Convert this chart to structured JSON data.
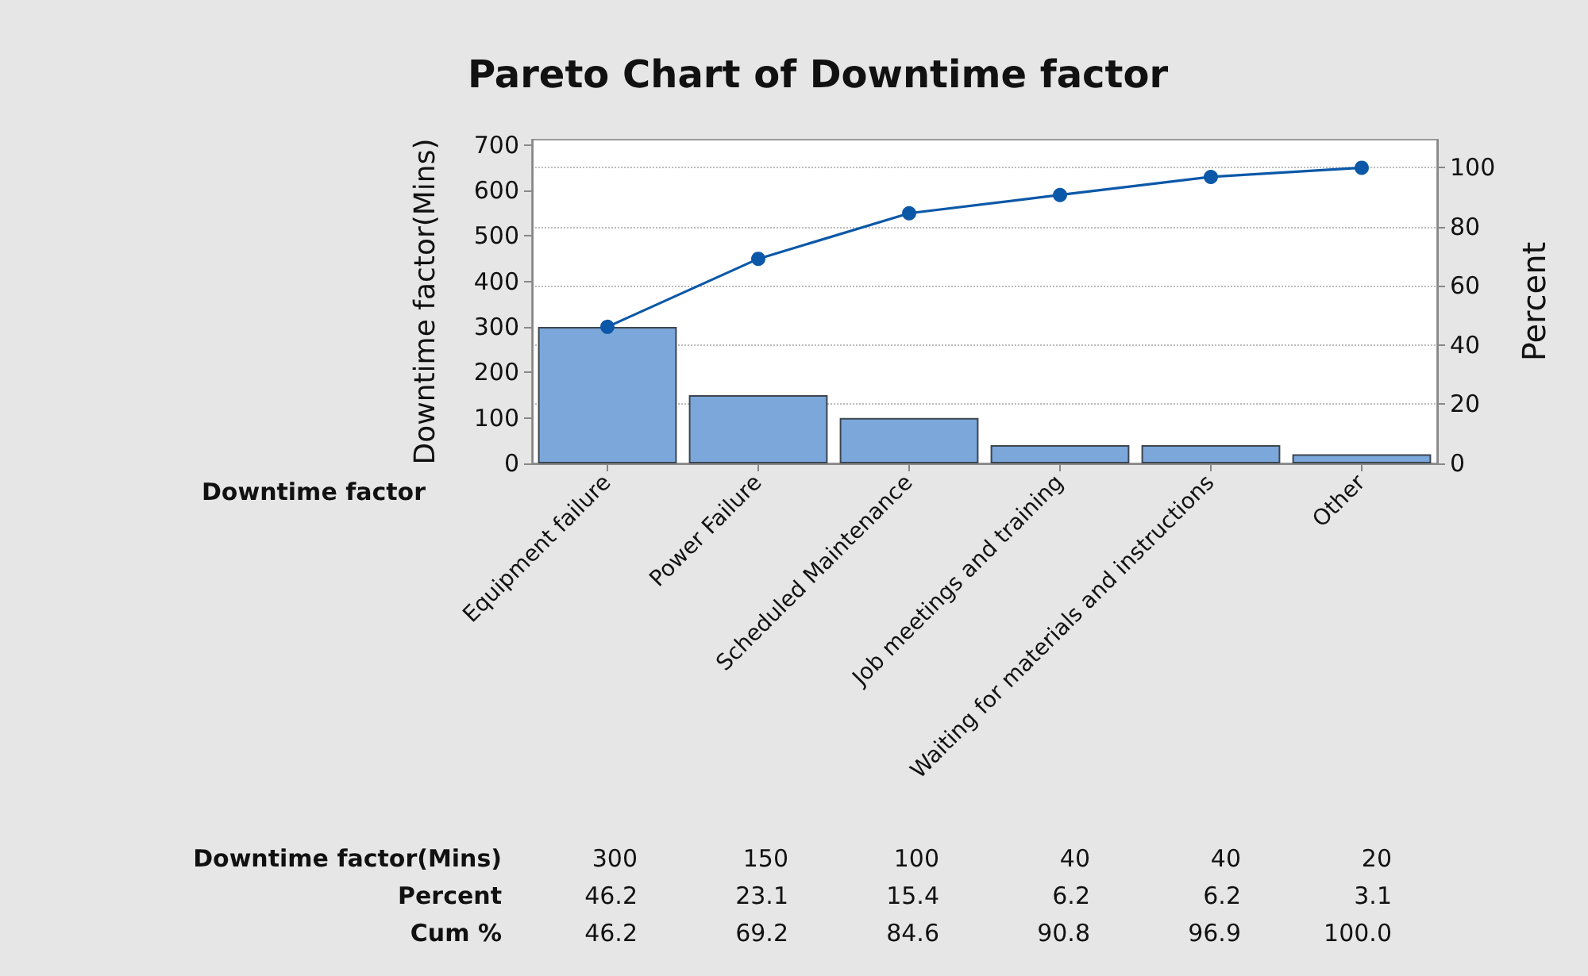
{
  "chart_data": {
    "type": "bar",
    "title": "Pareto Chart of Downtime factor",
    "xlabel": "Downtime factor",
    "ylabel": "Downtime factor(Mins)",
    "y2label": "Percent",
    "categories": [
      "Equipment failure",
      "Power Failure",
      "Scheduled Maintenance",
      "Job meetings and training",
      "Waiting for materials and instructions",
      "Other"
    ],
    "series": [
      {
        "color": "#7ba7da",
        "values": [
          300,
          150,
          100,
          40,
          40,
          20
        ],
        "value_labels": [
          "300",
          "150",
          "100",
          "40",
          "40",
          "20"
        ]
      },
      {
        "type": "line",
        "axis": "y2",
        "color": "#0b58a8",
        "values": [
          46.2,
          69.2,
          84.6,
          90.8,
          96.9,
          100.0
        ],
        "value_labels": [
          "46.2",
          "69.2",
          "84.6",
          "90.8",
          "96.9",
          "100.0"
        ]
      }
    ],
    "annotations": [
      "Downtime factor(Mins)",
      "Percent",
      "Cum %",
      "46.2",
      "23.1",
      "15.4",
      "6.2",
      "6.2",
      "3.1"
    ],
    "ylim": [
      0,
      712
    ],
    "yticks": [
      0,
      100,
      200,
      300,
      400,
      500,
      600,
      700
    ],
    "y2lim": [
      0,
      109.5
    ],
    "y2ticks": [
      0,
      20,
      40,
      60,
      80,
      100
    ],
    "grid": "y2",
    "marker": "circle",
    "line_style": "solid"
  }
}
